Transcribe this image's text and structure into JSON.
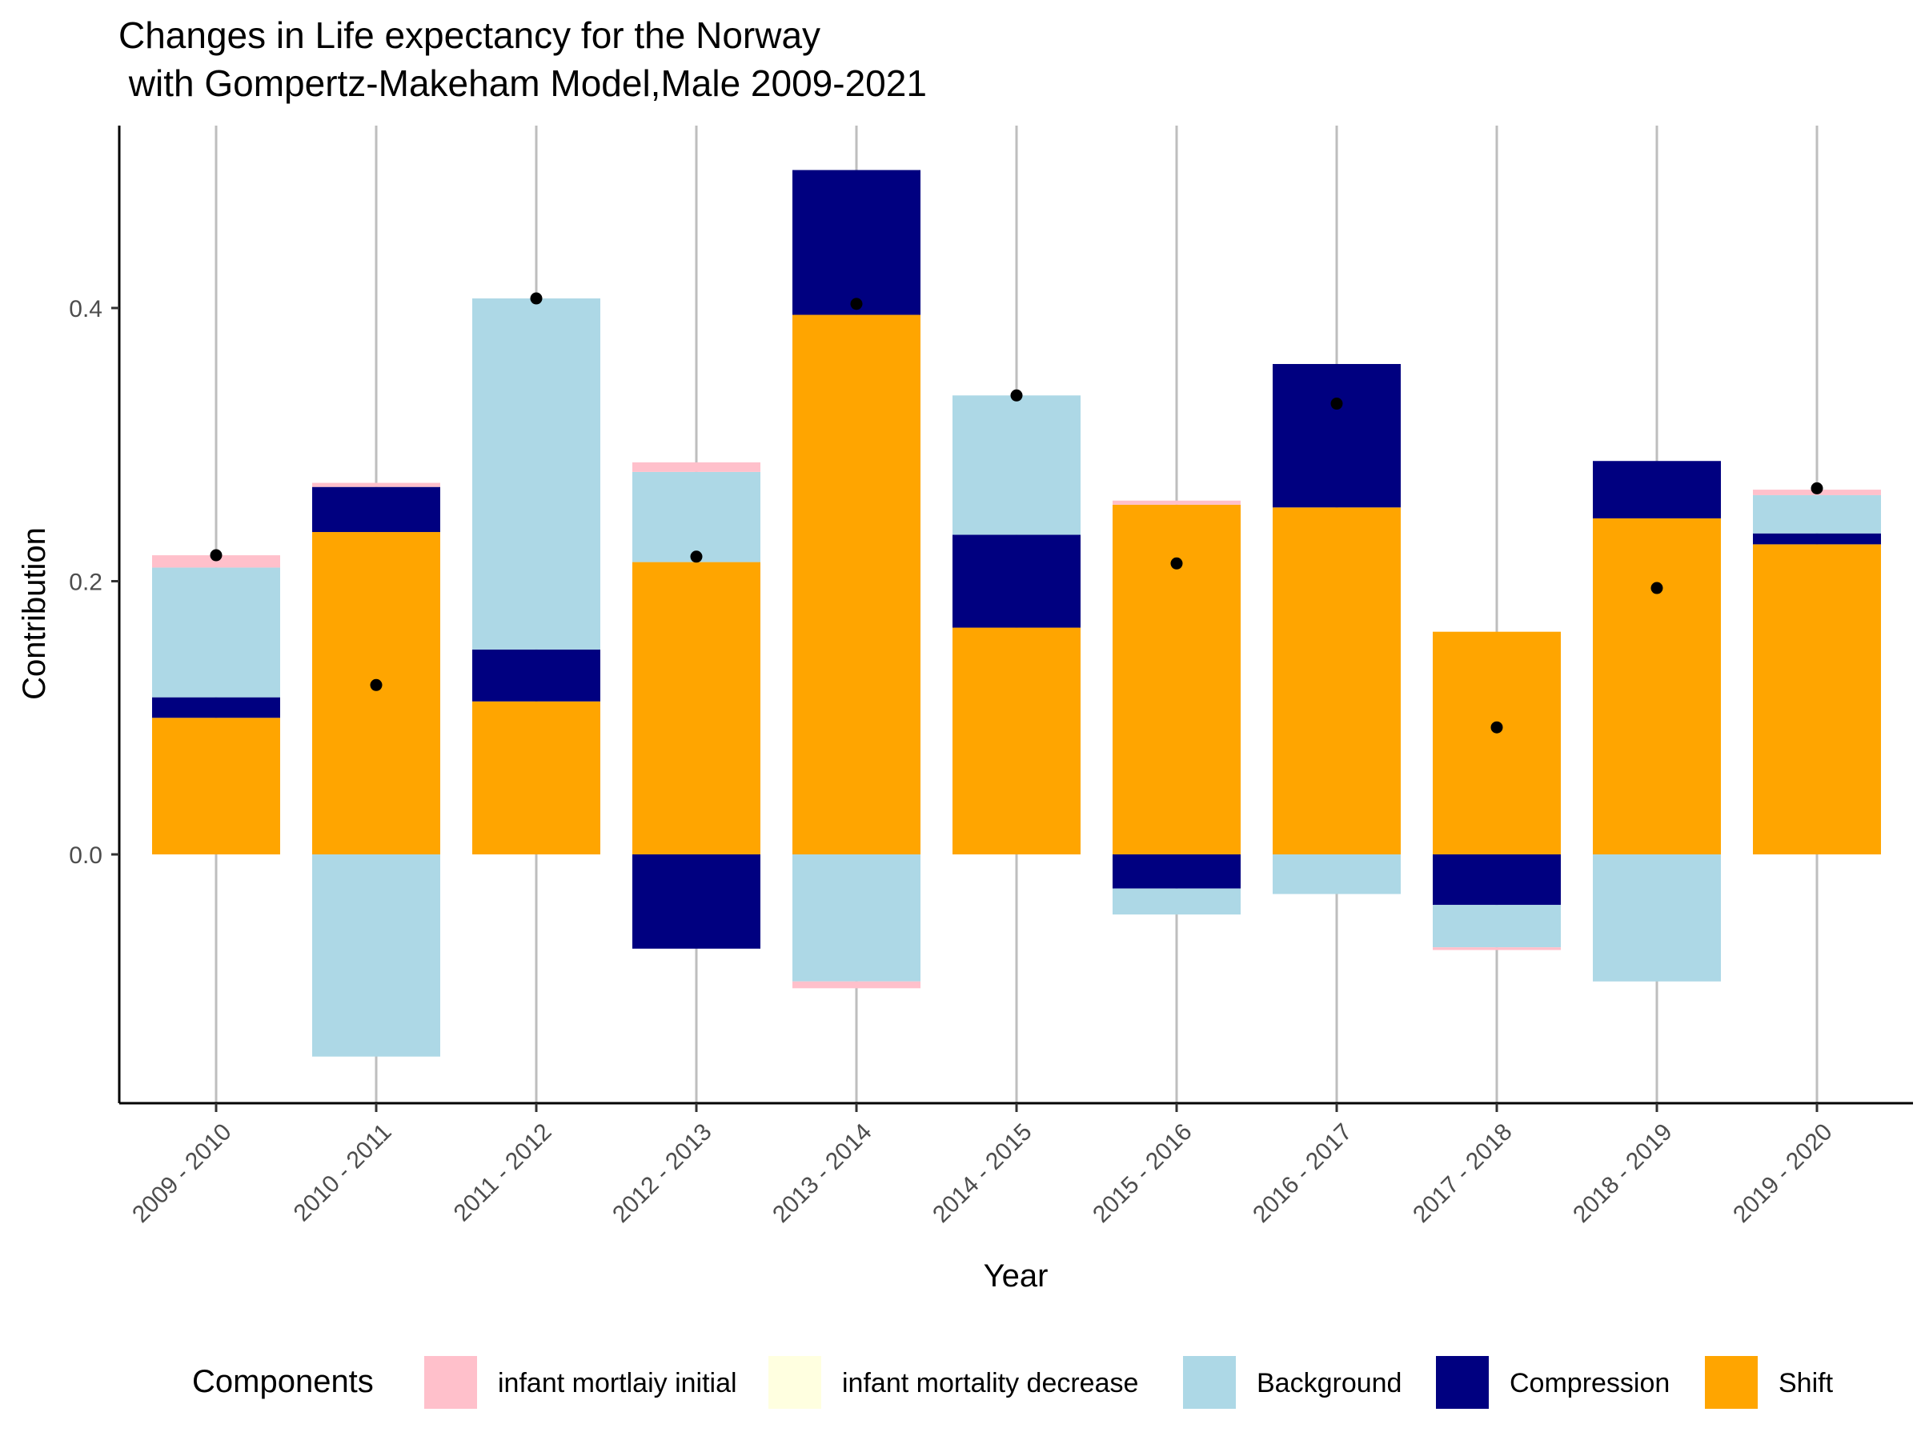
{
  "chart_data": {
    "type": "bar",
    "stacked": true,
    "title_lines": [
      "Changes in Life expectancy for the Norway",
      " with Gompertz-Makeham Model,Male 2009-2021"
    ],
    "xlabel": "Year",
    "ylabel": "Contribution",
    "ylim": [
      -0.18,
      0.53
    ],
    "yticks": [
      0.0,
      0.2,
      0.4
    ],
    "ytick_labels": [
      "0.0",
      "0.2",
      "0.4"
    ],
    "grid": "vertical-major",
    "legend_position": "bottom",
    "legend_title": "Components",
    "categories": [
      "2009 - 2010",
      "2010 - 2011",
      "2011 - 2012",
      "2012 - 2013",
      "2013 - 2014",
      "2014 - 2015",
      "2015 - 2016",
      "2016 - 2017",
      "2017 - 2018",
      "2018 - 2019",
      "2019 - 2020"
    ],
    "series": [
      {
        "name": "infant mortlaiy initial",
        "color": "#FFC0CB",
        "values": [
          0.009,
          0.003,
          0.0,
          0.007,
          -0.005,
          0.0,
          0.003,
          0.0,
          -0.002,
          0.0,
          0.004
        ]
      },
      {
        "name": "infant mortality decrease",
        "color": "#FFFFE0",
        "values": [
          0.0,
          0.0,
          0.0,
          0.0,
          0.0,
          0.0,
          0.0,
          0.0,
          0.0,
          0.0,
          0.0
        ]
      },
      {
        "name": "Background",
        "color": "#ADD8E6",
        "values": [
          0.095,
          -0.148,
          0.257,
          0.066,
          -0.093,
          0.102,
          -0.019,
          -0.029,
          -0.031,
          -0.093,
          0.028
        ]
      },
      {
        "name": "Compression",
        "color": "#000080",
        "values": [
          0.015,
          0.033,
          0.038,
          -0.069,
          0.106,
          0.068,
          -0.025,
          0.105,
          -0.037,
          0.042,
          0.008
        ]
      },
      {
        "name": "Shift",
        "color": "#FFA500",
        "values": [
          0.1,
          0.236,
          0.112,
          0.214,
          0.395,
          0.166,
          0.256,
          0.254,
          0.163,
          0.246,
          0.227
        ]
      }
    ],
    "total": [
      0.219,
      0.124,
      0.407,
      0.218,
      0.403,
      0.336,
      0.213,
      0.33,
      0.093,
      0.195,
      0.268
    ]
  }
}
